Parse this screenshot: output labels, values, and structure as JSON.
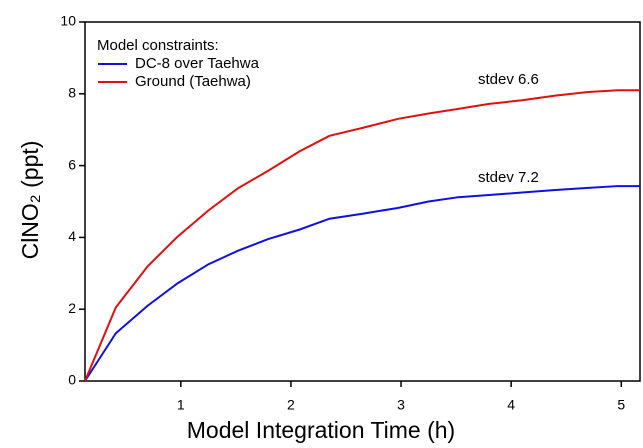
{
  "chart_data": {
    "type": "line",
    "x_label": "Model Integration Time (h)",
    "y_label": "ClNO₂ (ppt)",
    "legend_title": "Model constraints:",
    "legend": "upper left",
    "annotations": [
      "stdev 6.6",
      "stdev 7.2"
    ],
    "x": [
      0.13,
      0.41,
      0.7,
      0.97,
      1.25,
      1.52,
      1.79,
      2.08,
      2.35,
      2.65,
      2.97,
      3.25,
      3.52,
      3.8,
      4.1,
      4.4,
      4.7,
      4.97,
      5.17
    ],
    "series": [
      {
        "name": "DC-8 over Taehwa",
        "color": "#1010e0",
        "values": [
          0,
          1.33,
          2.1,
          2.72,
          3.25,
          3.63,
          3.95,
          4.22,
          4.52,
          4.66,
          4.82,
          5.0,
          5.12,
          5.18,
          5.25,
          5.32,
          5.38,
          5.43,
          5.43
        ]
      },
      {
        "name": "Ground (Taehwa)",
        "color": "#e01010",
        "values": [
          0,
          2.05,
          3.2,
          4.02,
          4.75,
          5.37,
          5.85,
          6.4,
          6.83,
          7.05,
          7.3,
          7.45,
          7.58,
          7.72,
          7.82,
          7.95,
          8.05,
          8.1,
          8.1
        ]
      }
    ],
    "xlim": [
      0.13,
      5.17
    ],
    "xticks": [
      1,
      2,
      3,
      4,
      5
    ],
    "ylim": [
      0,
      10
    ],
    "yticks": [
      0,
      2,
      4,
      6,
      8,
      10
    ],
    "grid": false
  }
}
